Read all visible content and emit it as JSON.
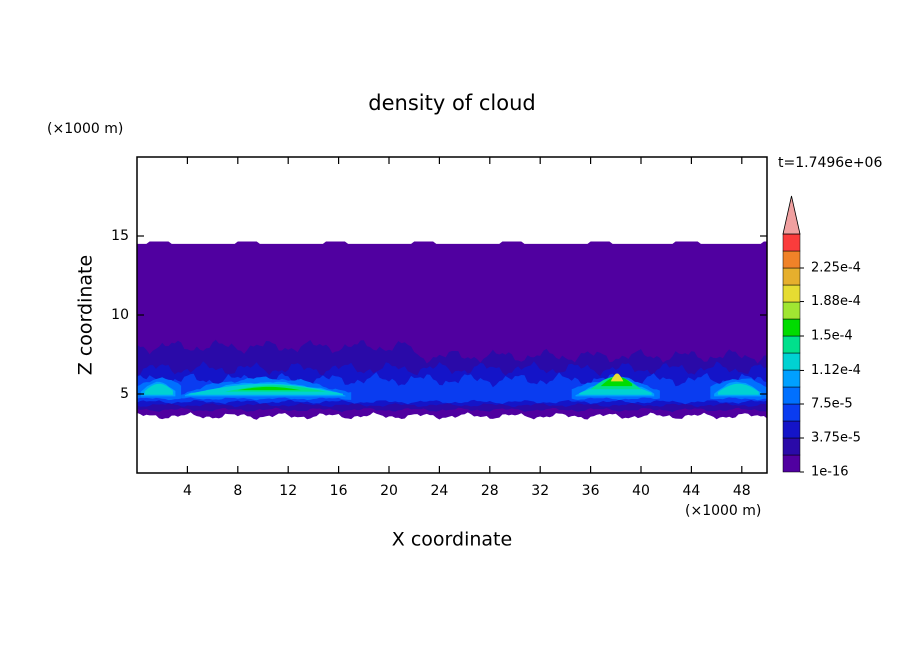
{
  "chart_data": {
    "type": "contour",
    "title": "density of cloud",
    "annotation": "t=1.7496e+06",
    "xlabel": "X coordinate",
    "ylabel": "Z coordinate",
    "x_unit": "(×1000 m)",
    "y_unit": "(×1000 m)",
    "xlim": [
      0,
      50
    ],
    "ylim": [
      0,
      20
    ],
    "xticks": [
      4,
      8,
      12,
      16,
      20,
      24,
      28,
      32,
      36,
      40,
      44,
      48
    ],
    "yticks": [
      5,
      10,
      15
    ],
    "colorbar": {
      "colors": [
        "#5000a0",
        "#2a0aa8",
        "#1414c8",
        "#0a3cf0",
        "#0070ff",
        "#00a0ff",
        "#00d2d2",
        "#00e08c",
        "#00dc00",
        "#a0e632",
        "#e6dc32",
        "#e6af2d",
        "#f08228",
        "#fa3c3c"
      ],
      "over_color": "#f0a0a0",
      "ticks": [
        {
          "value": 1e-16,
          "label": "1e-16"
        },
        {
          "value": 3.75e-05,
          "label": "3.75e-5"
        },
        {
          "value": 7.5e-05,
          "label": "7.5e-5"
        },
        {
          "value": 0.000112,
          "label": "1.12e-4"
        },
        {
          "value": 0.00015,
          "label": "1.5e-4"
        },
        {
          "value": 0.000188,
          "label": "1.88e-4"
        },
        {
          "value": 0.000225,
          "label": "2.25e-4"
        }
      ]
    }
  }
}
